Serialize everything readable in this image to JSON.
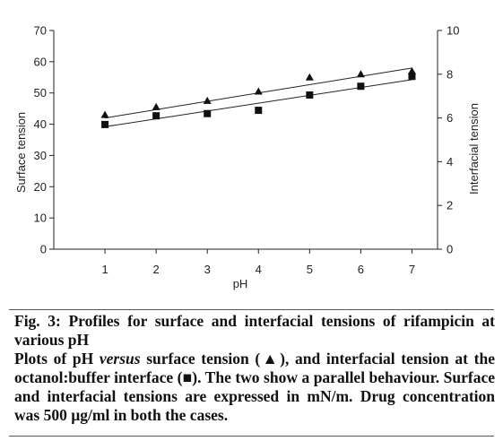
{
  "chart_data": {
    "type": "scatter",
    "x": [
      1,
      2,
      3,
      4,
      5,
      6,
      7
    ],
    "xlabel": "pH",
    "xlim": [
      0,
      7.5
    ],
    "y_left": {
      "label": "Surface tension",
      "ticks": [
        0,
        10,
        20,
        30,
        40,
        50,
        60,
        70
      ],
      "ylim": [
        0,
        70
      ]
    },
    "y_right": {
      "label": "Interfacial tension",
      "ticks": [
        0,
        2,
        4,
        6,
        8,
        10
      ],
      "ylim": [
        0,
        10
      ]
    },
    "series": [
      {
        "axis": "left",
        "marker": "triangle",
        "values": [
          43,
          45.5,
          47.5,
          50.5,
          55,
          56,
          57
        ],
        "trendline": [
          42,
          58
        ]
      },
      {
        "axis": "right",
        "marker": "square",
        "values": [
          5.7,
          6.1,
          6.2,
          6.35,
          7.05,
          7.45,
          7.9
        ],
        "trendline": [
          5.6,
          7.75
        ]
      }
    ],
    "grid": false,
    "legend": "none"
  },
  "caption": {
    "title": "Fig. 3: Profiles for surface and interfacial tensions of rifampicin at various pH",
    "body_part1": "Plots of pH ",
    "body_em": "versus",
    "body_part2": " surface tension (▲), and interfacial tension at the octanol:buffer interface (■). The two show a parallel behaviour. Surface and interfacial tensions are expressed in mN/m. Drug concentration was 500 µg/ml in both the cases."
  },
  "colors": {
    "ink": "#222222",
    "marker": "#111111"
  }
}
